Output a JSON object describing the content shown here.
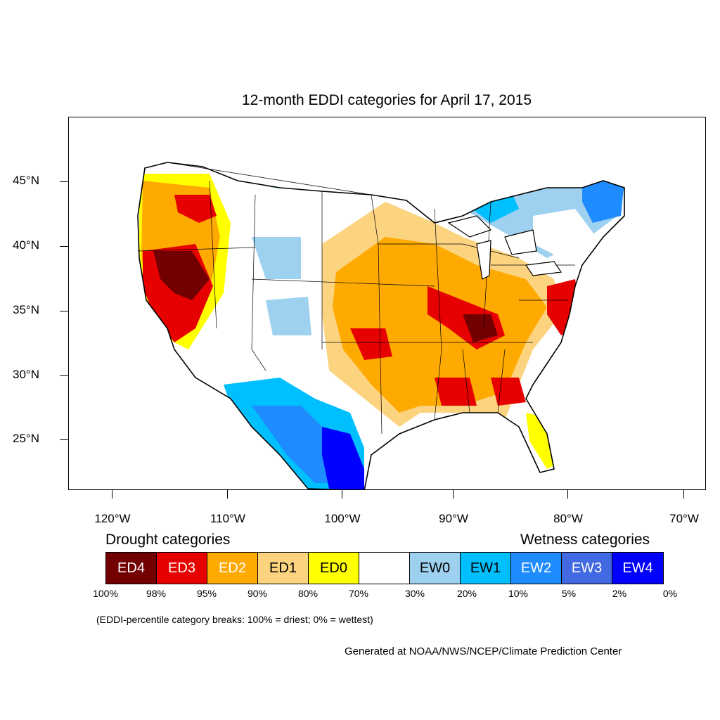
{
  "map": {
    "title": "12-month EDDI categories for April 17, 2015",
    "lat_labels": [
      "45°N",
      "40°N",
      "35°N",
      "30°N",
      "25°N"
    ],
    "lon_labels": [
      "120°W",
      "110°W",
      "100°W",
      "90°W",
      "80°W",
      "70°W"
    ]
  },
  "legend": {
    "drought_heading": "Drought categories",
    "wetness_heading": "Wetness categories",
    "categories": [
      {
        "label": "ED4",
        "color": "#730000",
        "text_color": "#ffffff"
      },
      {
        "label": "ED3",
        "color": "#e60000",
        "text_color": "#ffffff"
      },
      {
        "label": "ED2",
        "color": "#ffaa00",
        "text_color": "#ffffff"
      },
      {
        "label": "ED1",
        "color": "#fcd37f",
        "text_color": "#000000"
      },
      {
        "label": "ED0",
        "color": "#ffff00",
        "text_color": "#000000"
      },
      {
        "label": "",
        "color": "#ffffff",
        "text_color": "#000000"
      },
      {
        "label": "EW0",
        "color": "#9ed0f0",
        "text_color": "#000000"
      },
      {
        "label": "EW1",
        "color": "#00bfff",
        "text_color": "#000000"
      },
      {
        "label": "EW2",
        "color": "#1e8cff",
        "text_color": "#ffffff"
      },
      {
        "label": "EW3",
        "color": "#4169e1",
        "text_color": "#ffffff"
      },
      {
        "label": "EW4",
        "color": "#0000ff",
        "text_color": "#ffffff"
      }
    ],
    "percentiles": [
      "100%",
      "98%",
      "95%",
      "90%",
      "80%",
      "70%",
      "30%",
      "20%",
      "10%",
      "5%",
      "2%",
      "0%"
    ],
    "note": "(EDDI-percentile category breaks: 100% = driest; 0% = wettest)"
  },
  "credit": "Generated at NOAA/NWS/NCEP/Climate Prediction Center"
}
